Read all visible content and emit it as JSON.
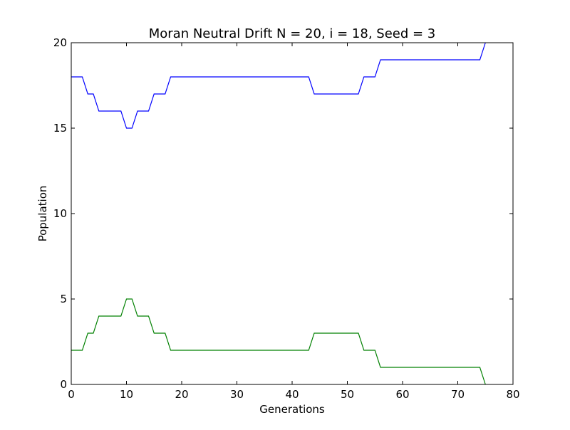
{
  "chart_data": {
    "type": "line",
    "title": "Moran Neutral Drift N = 20, i = 18, Seed = 3",
    "xlabel": "Generations",
    "ylabel": "Population",
    "xlim": [
      0,
      80
    ],
    "ylim": [
      0,
      20
    ],
    "x_ticks": [
      0,
      10,
      20,
      30,
      40,
      50,
      60,
      70,
      80
    ],
    "y_ticks": [
      0,
      5,
      10,
      15,
      20
    ],
    "grid": false,
    "legend": false,
    "series": [
      {
        "color": "#0000ff",
        "points": [
          [
            0,
            18
          ],
          [
            2,
            18
          ],
          [
            3,
            17
          ],
          [
            4,
            17
          ],
          [
            5,
            16
          ],
          [
            9,
            16
          ],
          [
            10,
            15
          ],
          [
            11,
            15
          ],
          [
            12,
            16
          ],
          [
            14,
            16
          ],
          [
            15,
            17
          ],
          [
            17,
            17
          ],
          [
            18,
            18
          ],
          [
            43,
            18
          ],
          [
            44,
            17
          ],
          [
            52,
            17
          ],
          [
            53,
            18
          ],
          [
            55,
            18
          ],
          [
            56,
            19
          ],
          [
            74,
            19
          ],
          [
            75,
            20
          ]
        ]
      },
      {
        "color": "#008000",
        "points": [
          [
            0,
            2
          ],
          [
            2,
            2
          ],
          [
            3,
            3
          ],
          [
            4,
            3
          ],
          [
            5,
            4
          ],
          [
            9,
            4
          ],
          [
            10,
            5
          ],
          [
            11,
            5
          ],
          [
            12,
            4
          ],
          [
            14,
            4
          ],
          [
            15,
            3
          ],
          [
            17,
            3
          ],
          [
            18,
            2
          ],
          [
            43,
            2
          ],
          [
            44,
            3
          ],
          [
            52,
            3
          ],
          [
            53,
            2
          ],
          [
            55,
            2
          ],
          [
            56,
            1
          ],
          [
            74,
            1
          ],
          [
            75,
            0
          ]
        ]
      }
    ]
  }
}
